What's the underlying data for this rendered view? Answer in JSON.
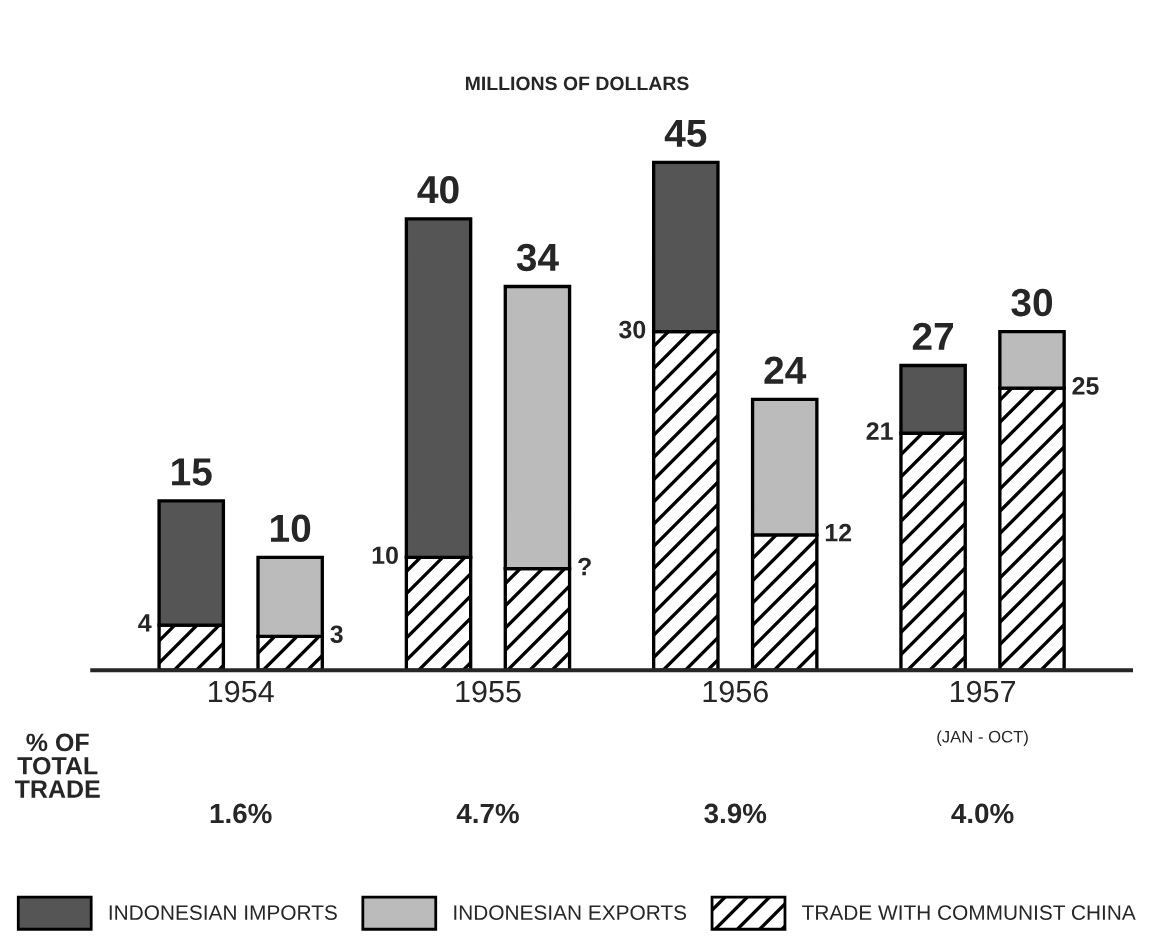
{
  "chart_data": {
    "type": "bar",
    "subtitle": "MILLIONS OF DOLLARS",
    "stacked": true,
    "xlim": [
      1953.4,
      1957.6
    ],
    "xticks": [
      1954,
      1955,
      1956,
      1957
    ],
    "series": [
      {
        "name": "TRADE WITH COMMUNIST CHINA",
        "color": "#000000",
        "x": [
          1953.8,
          1954.2,
          1954.8,
          1955.2,
          1955.8,
          1956.2,
          1956.8,
          1957.2
        ],
        "values": [
          4,
          3,
          10,
          9,
          30,
          12,
          21,
          25
        ],
        "value_labels": [
          "4",
          "3",
          "10",
          "?",
          "30",
          "12",
          "21",
          "25"
        ]
      },
      {
        "name": "INDONESIAN IMPORTS",
        "color": "#555555",
        "x": [
          1953.8,
          null,
          1954.8,
          null,
          1955.8,
          null,
          1956.8,
          null
        ],
        "values": [
          11,
          null,
          30,
          null,
          15,
          null,
          6,
          null
        ]
      },
      {
        "name": "INDONESIAN EXPORTS",
        "color": "#bbbbbb",
        "x": [
          null,
          1954.2,
          null,
          1955.2,
          null,
          1956.2,
          null,
          1957.2
        ],
        "values": [
          null,
          7,
          null,
          25,
          null,
          12,
          null,
          5
        ]
      }
    ],
    "totals": [
      "15",
      "10",
      "40",
      "34",
      "45",
      "24",
      "27",
      "30"
    ],
    "annotations": [
      "% OF\nTOTAL\nTRADE",
      "(JAN - OCT)",
      "1.6%",
      "4.7%",
      "3.9%",
      "4.0%"
    ],
    "legend": "bottom"
  }
}
